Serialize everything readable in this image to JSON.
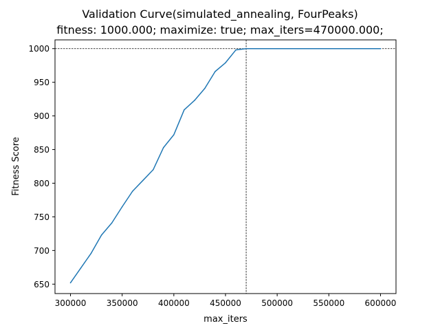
{
  "chart_data": {
    "type": "line",
    "title": "Validation Curve(simulated_annealing, FourPeaks)",
    "subtitle": "fitness: 1000.000; maximize: true; max_iters=470000.000;",
    "xlabel": "max_iters",
    "ylabel": "Fitness Score",
    "xlim": [
      285000,
      615000
    ],
    "ylim": [
      636,
      1013
    ],
    "xticks": [
      300000,
      350000,
      400000,
      450000,
      500000,
      550000,
      600000
    ],
    "xtick_labels": [
      "300000",
      "350000",
      "400000",
      "450000",
      "500000",
      "550000",
      "600000"
    ],
    "yticks": [
      650,
      700,
      750,
      800,
      850,
      900,
      950,
      1000
    ],
    "ytick_labels": [
      "650",
      "700",
      "750",
      "800",
      "850",
      "900",
      "950",
      "1000"
    ],
    "grid": false,
    "reference_lines": {
      "vertical_x": 470000,
      "horizontal_y": 1000,
      "style": "dashed"
    },
    "series": [
      {
        "color": "#1f77b4",
        "x": [
          300000,
          310000,
          320000,
          330000,
          340000,
          350000,
          360000,
          370000,
          380000,
          390000,
          400000,
          410000,
          420000,
          430000,
          440000,
          450000,
          460000,
          470000,
          480000,
          490000,
          500000,
          510000,
          520000,
          530000,
          540000,
          550000,
          560000,
          570000,
          580000,
          590000,
          600000
        ],
        "y": [
          652,
          674,
          696,
          723,
          741,
          765,
          788,
          804,
          820,
          853,
          872,
          909,
          923,
          941,
          966,
          979,
          998,
          1000,
          1000,
          1000,
          1000,
          1000,
          1000,
          1000,
          1000,
          1000,
          1000,
          1000,
          1000,
          1000,
          1000
        ]
      }
    ]
  }
}
